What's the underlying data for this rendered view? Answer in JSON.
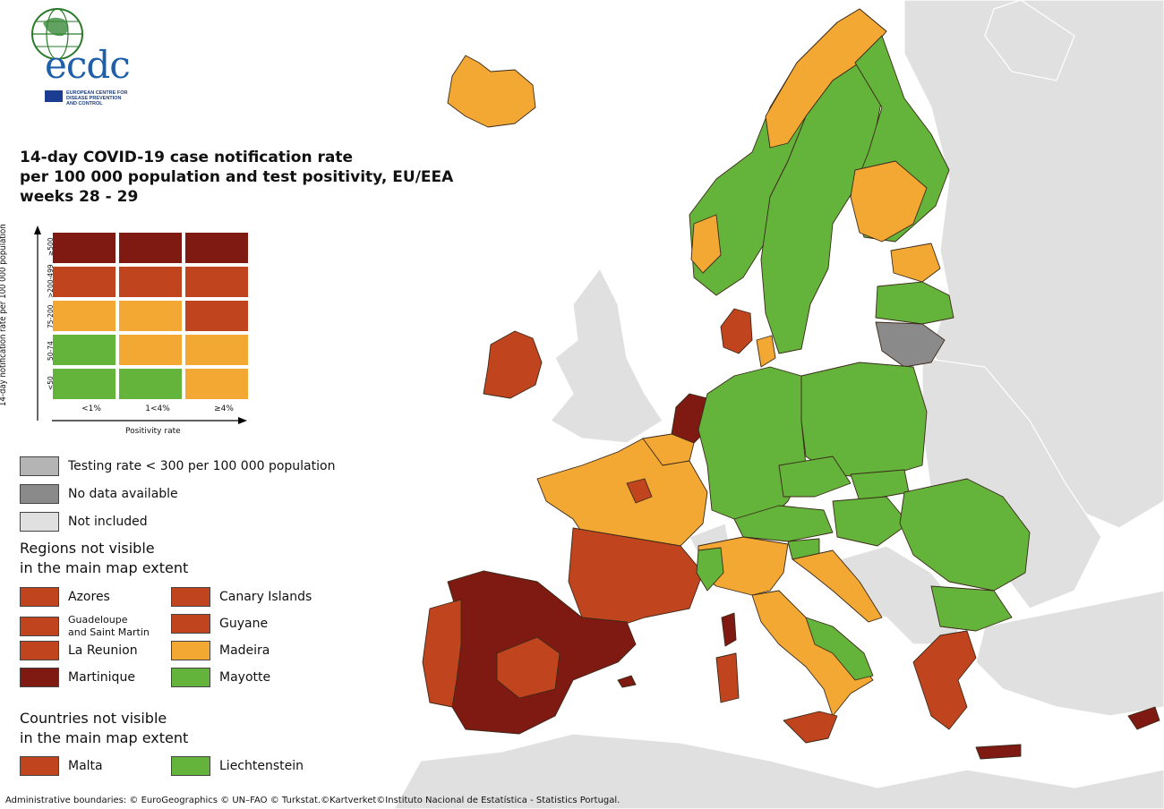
{
  "logo": {
    "wordmark": "ecdc",
    "subtitle_lines": [
      "EUROPEAN CENTRE FOR",
      "DISEASE PREVENTION",
      "AND CONTROL"
    ]
  },
  "title_lines": [
    "14-day COVID-19 case notification rate",
    "per 100 000 population and test positivity, EU/EEA",
    "weeks 28 - 29"
  ],
  "colors": {
    "dark_red": "#7e1a12",
    "red": "#c0441e",
    "orange": "#f2a833",
    "green": "#64b33a",
    "testing_grey": "#b4b4b4",
    "no_data_grey": "#8a8a8a",
    "not_included": "#e0e0e0",
    "sea": "#ffffff"
  },
  "matrix": {
    "y_axis_label": "14-day notification rate per 100 000 population",
    "x_axis_label": "Positivity rate",
    "rows": [
      "≥500",
      ">200-499",
      "75-200",
      "50-74",
      "<50"
    ],
    "columns": [
      "<1%",
      "1<4%",
      "≥4%"
    ],
    "cells": [
      [
        "dark_red",
        "dark_red",
        "dark_red"
      ],
      [
        "red",
        "red",
        "red"
      ],
      [
        "orange",
        "orange",
        "red"
      ],
      [
        "green",
        "orange",
        "orange"
      ],
      [
        "green",
        "green",
        "orange"
      ]
    ]
  },
  "legend_grey": [
    {
      "label": "Testing rate < 300 per 100 000 population",
      "color": "testing_grey"
    },
    {
      "label": "No data available",
      "color": "no_data_grey"
    },
    {
      "label": "Not included",
      "color": "not_included"
    }
  ],
  "regions_heading_lines": [
    "Regions not visible",
    "in the main map extent"
  ],
  "regions": [
    {
      "label": "Azores",
      "color": "red"
    },
    {
      "label": "Canary Islands",
      "color": "red"
    },
    {
      "label": "Guadeloupe\nand Saint Martin",
      "color": "red"
    },
    {
      "label": "Guyane",
      "color": "red"
    },
    {
      "label": "La Reunion",
      "color": "red"
    },
    {
      "label": "Madeira",
      "color": "orange"
    },
    {
      "label": "Martinique",
      "color": "dark_red"
    },
    {
      "label": "Mayotte",
      "color": "green"
    }
  ],
  "countries_heading_lines": [
    "Countries not visible",
    "in the main map extent"
  ],
  "countries": [
    {
      "label": "Malta",
      "color": "red"
    },
    {
      "label": "Liechtenstein",
      "color": "green"
    }
  ],
  "footer": "Administrative boundaries: © EuroGeographics © UN–FAO © Turkstat.©Kartverket©Instituto Nacional de Estatística - Statistics Portugal."
}
